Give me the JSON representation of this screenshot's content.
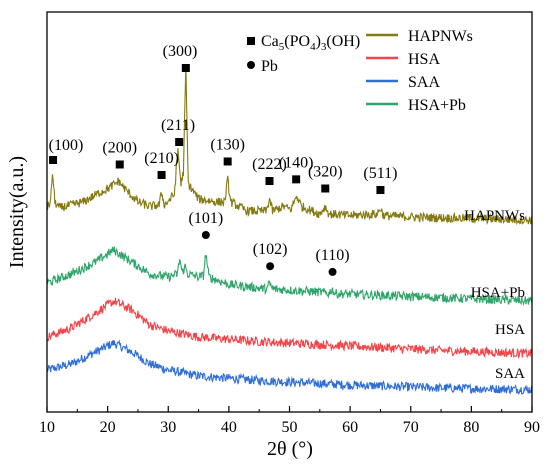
{
  "chart_data": {
    "type": "line",
    "xlabel": "2θ (°)",
    "ylabel": "Intensity(a.u.)",
    "xlim": [
      10,
      90
    ],
    "x_ticks": [
      10,
      20,
      30,
      40,
      50,
      60,
      70,
      80,
      90
    ],
    "grid": false,
    "legend_placement": "top-right",
    "series": [
      {
        "name": "HAPNWs",
        "color": "#857a10",
        "curve_label": "HAPNWs",
        "points": [
          [
            10,
            0.46
          ],
          [
            10.6,
            0.5
          ],
          [
            10.9,
            0.7
          ],
          [
            11.3,
            0.5
          ],
          [
            12,
            0.46
          ],
          [
            16,
            0.5
          ],
          [
            19,
            0.57
          ],
          [
            20.5,
            0.6
          ],
          [
            21.8,
            0.64
          ],
          [
            23,
            0.58
          ],
          [
            25,
            0.5
          ],
          [
            27,
            0.47
          ],
          [
            28.5,
            0.48
          ],
          [
            28.9,
            0.56
          ],
          [
            29.4,
            0.48
          ],
          [
            31,
            0.55
          ],
          [
            31.6,
            0.85
          ],
          [
            32.1,
            0.62
          ],
          [
            32.5,
            0.7
          ],
          [
            32.9,
            1.4
          ],
          [
            33.3,
            0.62
          ],
          [
            34,
            0.58
          ],
          [
            35,
            0.52
          ],
          [
            38,
            0.5
          ],
          [
            39.3,
            0.5
          ],
          [
            39.8,
            0.65
          ],
          [
            40.3,
            0.5
          ],
          [
            43,
            0.44
          ],
          [
            46.2,
            0.44
          ],
          [
            46.7,
            0.52
          ],
          [
            47.2,
            0.44
          ],
          [
            49,
            0.47
          ],
          [
            50.2,
            0.45
          ],
          [
            51.2,
            0.54
          ],
          [
            52,
            0.47
          ],
          [
            55,
            0.42
          ],
          [
            55.9,
            0.47
          ],
          [
            56.5,
            0.42
          ],
          [
            60,
            0.41
          ],
          [
            64.5,
            0.42
          ],
          [
            65,
            0.46
          ],
          [
            65.5,
            0.41
          ],
          [
            70,
            0.4
          ],
          [
            80,
            0.39
          ],
          [
            90,
            0.38
          ]
        ]
      },
      {
        "name": "HSA",
        "color": "#f2454a",
        "curve_label": "HSA",
        "points": [
          [
            10,
            -0.4
          ],
          [
            14,
            -0.34
          ],
          [
            18,
            -0.24
          ],
          [
            21,
            -0.16
          ],
          [
            24,
            -0.22
          ],
          [
            27,
            -0.32
          ],
          [
            30,
            -0.36
          ],
          [
            35,
            -0.4
          ],
          [
            45,
            -0.43
          ],
          [
            60,
            -0.46
          ],
          [
            75,
            -0.49
          ],
          [
            90,
            -0.51
          ]
        ]
      },
      {
        "name": "SAA",
        "color": "#2f6ed6",
        "curve_label": "SAA",
        "points": [
          [
            10,
            -0.62
          ],
          [
            14,
            -0.58
          ],
          [
            18,
            -0.5
          ],
          [
            21,
            -0.44
          ],
          [
            24,
            -0.5
          ],
          [
            27,
            -0.58
          ],
          [
            30,
            -0.62
          ],
          [
            35,
            -0.66
          ],
          [
            45,
            -0.69
          ],
          [
            60,
            -0.72
          ],
          [
            75,
            -0.74
          ],
          [
            90,
            -0.75
          ]
        ]
      },
      {
        "name": "HSA+Pb",
        "color": "#2fa56b",
        "curve_label": "HSA+Pb",
        "points": [
          [
            10,
            -0.04
          ],
          [
            14,
            0.02
          ],
          [
            18,
            0.1
          ],
          [
            21,
            0.18
          ],
          [
            24,
            0.1
          ],
          [
            27,
            0.02
          ],
          [
            30,
            0.0
          ],
          [
            31.5,
            0.02
          ],
          [
            31.9,
            0.12
          ],
          [
            32.3,
            0.03
          ],
          [
            32.8,
            0.07
          ],
          [
            33.2,
            0.02
          ],
          [
            35,
            0.0
          ],
          [
            35.8,
            0.01
          ],
          [
            36.2,
            0.16
          ],
          [
            36.7,
            0.0
          ],
          [
            40,
            -0.05
          ],
          [
            46.3,
            -0.08
          ],
          [
            46.7,
            -0.04
          ],
          [
            47.2,
            -0.08
          ],
          [
            55,
            -0.1
          ],
          [
            56.5,
            -0.11
          ],
          [
            57,
            -0.08
          ],
          [
            57.5,
            -0.11
          ],
          [
            70,
            -0.13
          ],
          [
            90,
            -0.16
          ]
        ]
      }
    ],
    "legend": {
      "entries": [
        "HAPNWs",
        "HSA",
        "SAA",
        "HSA+Pb"
      ]
    },
    "marker_legend": {
      "ca_formula": [
        "Ca",
        "5",
        "(PO",
        "4",
        ")",
        "3",
        "(OH)"
      ],
      "pb": "Pb"
    },
    "peak_annotations": [
      {
        "label": "(100)",
        "marker": "square",
        "x": 11.0
      },
      {
        "label": "(200)",
        "marker": "square",
        "x": 22.0
      },
      {
        "label": "(210)",
        "marker": "square",
        "x": 28.9
      },
      {
        "label": "(211)",
        "marker": "square",
        "x": 31.8
      },
      {
        "label": "(300)",
        "marker": "square",
        "x": 32.9
      },
      {
        "label": "(130)",
        "marker": "square",
        "x": 39.8
      },
      {
        "label": "(222)",
        "marker": "square",
        "x": 46.7
      },
      {
        "label": "(140)",
        "marker": "square",
        "x": 51.1
      },
      {
        "label": "(320)",
        "marker": "square",
        "x": 55.9
      },
      {
        "label": "(511)",
        "marker": "square",
        "x": 65.0
      },
      {
        "label": "(101)",
        "marker": "circle",
        "x": 36.2
      },
      {
        "label": "(102)",
        "marker": "circle",
        "x": 46.8
      },
      {
        "label": "(110)",
        "marker": "circle",
        "x": 57.1
      }
    ]
  }
}
